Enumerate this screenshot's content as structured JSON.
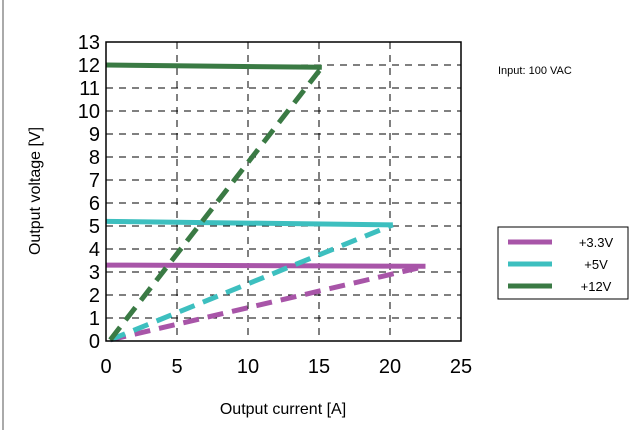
{
  "chart_data": {
    "type": "line",
    "title": "",
    "xlabel": "Output current [A]",
    "ylabel": "Output voltage [V]",
    "xlim": [
      0,
      25
    ],
    "ylim": [
      0,
      13
    ],
    "x_ticks": [
      0,
      5,
      10,
      15,
      20,
      25
    ],
    "y_ticks": [
      0,
      1,
      2,
      3,
      4,
      5,
      6,
      7,
      8,
      9,
      10,
      11,
      12,
      13
    ],
    "grid": true,
    "grid_style": "dashed",
    "legend_position": "right",
    "annotation": "Input: 100 VAC",
    "series": [
      {
        "name": "+3.3V",
        "color": "#a855a8",
        "regulation": [
          [
            0,
            3.3
          ],
          [
            22.5,
            3.25
          ]
        ],
        "foldback": [
          [
            0.3,
            0.05
          ],
          [
            22.5,
            3.25
          ]
        ]
      },
      {
        "name": "+5V",
        "color": "#3dbfbf",
        "regulation": [
          [
            0,
            5.2
          ],
          [
            20.2,
            5.05
          ]
        ],
        "foldback": [
          [
            0.3,
            0.05
          ],
          [
            20.2,
            5.05
          ]
        ]
      },
      {
        "name": "+12V",
        "color": "#3a7a44",
        "regulation": [
          [
            0,
            12.0
          ],
          [
            15.2,
            11.9
          ]
        ],
        "foldback": [
          [
            0.3,
            0.05
          ],
          [
            15.2,
            11.9
          ]
        ]
      }
    ]
  }
}
